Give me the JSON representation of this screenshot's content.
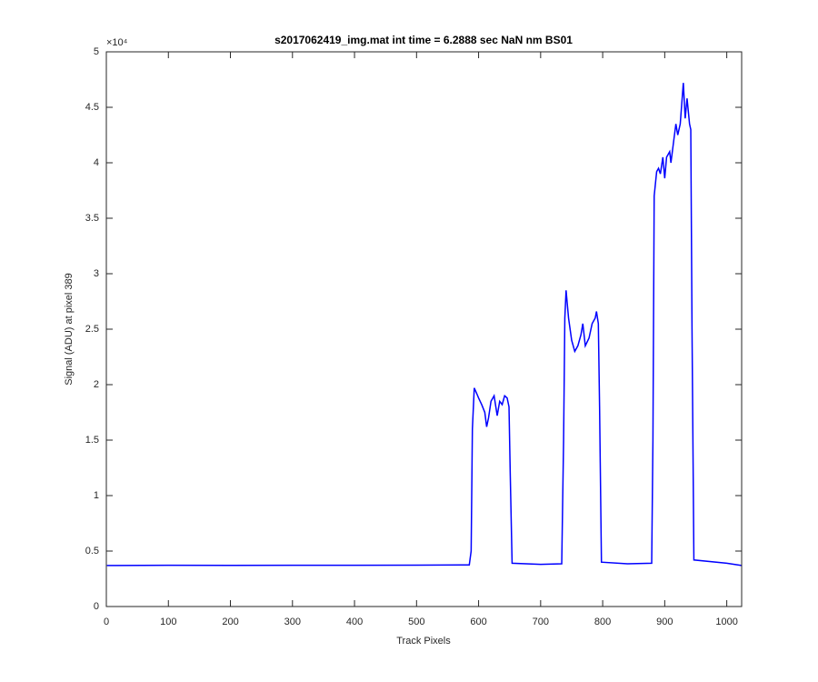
{
  "chart_data": {
    "type": "line",
    "title": "s2017062419_img.mat int time = 6.2888 sec  NaN nm BS01",
    "x_label": "Track Pixels",
    "y_label": "Signal (ADU) at pixel 389",
    "y_exponent_label": "×10⁴",
    "color": "#0000ff",
    "xlim": [
      0,
      1024
    ],
    "ylim": [
      0,
      5
    ],
    "xticks": [
      0,
      100,
      200,
      300,
      400,
      500,
      600,
      700,
      800,
      900,
      1000
    ],
    "yticks": [
      0,
      0.5,
      1,
      1.5,
      2,
      2.5,
      3,
      3.5,
      4,
      4.5,
      5
    ],
    "x": [
      1,
      100,
      200,
      300,
      400,
      500,
      585,
      588,
      590,
      593,
      597,
      600,
      605,
      610,
      613,
      616,
      620,
      625,
      630,
      634,
      638,
      642,
      646,
      649,
      651,
      654,
      700,
      734,
      737,
      739,
      741,
      745,
      750,
      755,
      760,
      765,
      768,
      772,
      778,
      783,
      788,
      790,
      793,
      795,
      798,
      840,
      879,
      881,
      883,
      887,
      890,
      893,
      897,
      900,
      903,
      908,
      910,
      915,
      918,
      921,
      925,
      930,
      933,
      936,
      940,
      942,
      944,
      947,
      1000,
      1024
    ],
    "values": [
      0.37,
      0.372,
      0.371,
      0.372,
      0.372,
      0.373,
      0.375,
      0.5,
      1.6,
      1.97,
      1.92,
      1.88,
      1.82,
      1.75,
      1.62,
      1.7,
      1.85,
      1.9,
      1.72,
      1.85,
      1.82,
      1.9,
      1.88,
      1.8,
      1.2,
      0.39,
      0.38,
      0.385,
      1.5,
      2.6,
      2.85,
      2.6,
      2.4,
      2.3,
      2.35,
      2.45,
      2.55,
      2.35,
      2.42,
      2.55,
      2.6,
      2.66,
      2.55,
      1.8,
      0.4,
      0.385,
      0.39,
      1.5,
      3.7,
      3.92,
      3.95,
      3.9,
      4.05,
      3.86,
      4.05,
      4.1,
      4.0,
      4.22,
      4.35,
      4.25,
      4.35,
      4.72,
      4.4,
      4.58,
      4.35,
      4.3,
      2.5,
      0.42,
      0.39,
      0.37
    ]
  }
}
